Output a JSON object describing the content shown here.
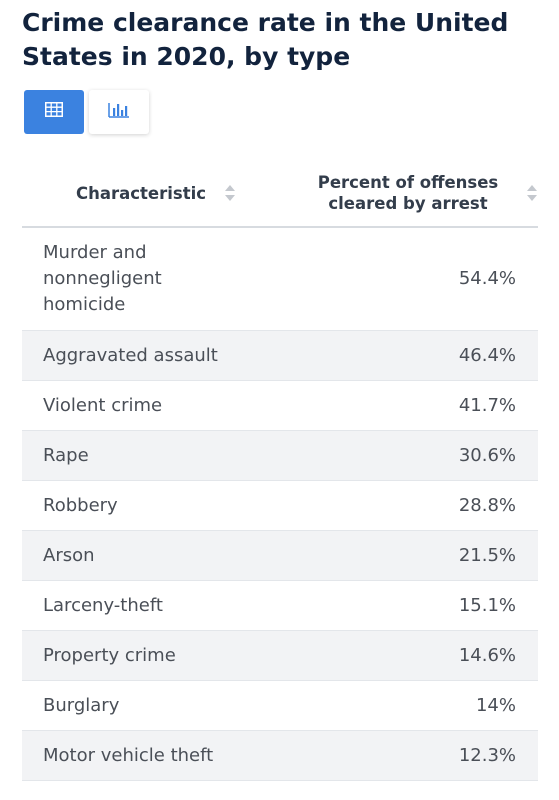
{
  "title": "Crime clearance rate in the United States in 2020, by type",
  "view_toggle": {
    "active": "table",
    "icons": [
      "table-icon",
      "bar-chart-icon"
    ]
  },
  "colors": {
    "accent": "#3b82e0",
    "title": "#12233d",
    "row_shade": "#f2f3f5"
  },
  "table": {
    "columns": [
      "Characteristic",
      "Percent of offenses cleared by arrest"
    ]
  },
  "chart_data": {
    "type": "table",
    "title": "Crime clearance rate in the United States in 2020, by type",
    "columns": [
      "Characteristic",
      "Percent of offenses cleared by arrest"
    ],
    "rows": [
      {
        "label": "Murder and nonnegligent homicide",
        "value": 54.4,
        "display": "54.4%"
      },
      {
        "label": "Aggravated assault",
        "value": 46.4,
        "display": "46.4%"
      },
      {
        "label": "Violent crime",
        "value": 41.7,
        "display": "41.7%"
      },
      {
        "label": "Rape",
        "value": 30.6,
        "display": "30.6%"
      },
      {
        "label": "Robbery",
        "value": 28.8,
        "display": "28.8%"
      },
      {
        "label": "Arson",
        "value": 21.5,
        "display": "21.5%"
      },
      {
        "label": "Larceny-theft",
        "value": 15.1,
        "display": "15.1%"
      },
      {
        "label": "Property crime",
        "value": 14.6,
        "display": "14.6%"
      },
      {
        "label": "Burglary",
        "value": 14,
        "display": "14%"
      },
      {
        "label": "Motor vehicle theft",
        "value": 12.3,
        "display": "12.3%"
      }
    ]
  }
}
